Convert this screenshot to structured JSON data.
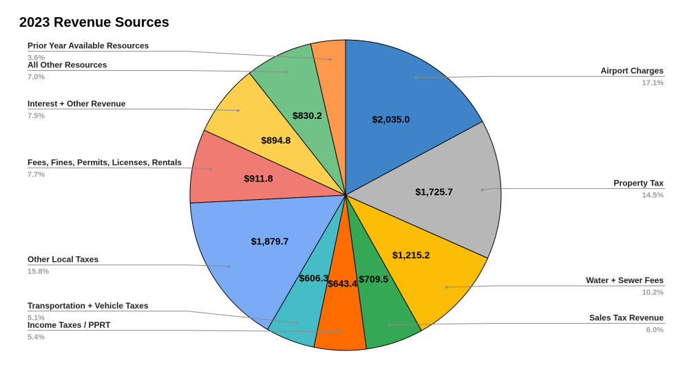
{
  "chart_data": {
    "type": "pie",
    "title": "2023 Revenue Sources",
    "start_angle_deg": 0,
    "direction": "clockwise",
    "slices": [
      {
        "name": "Airport Charges",
        "value": 2035.0,
        "value_label": "$2,035.0",
        "percent_label": "17.1%",
        "color": "#3f83c8",
        "side": "right"
      },
      {
        "name": "Property Tax",
        "value": 1725.7,
        "value_label": "$1,725.7",
        "percent_label": "14.5%",
        "color": "#b7b7b7",
        "side": "right"
      },
      {
        "name": "Water + Sewer Fees",
        "value": 1215.2,
        "value_label": "$1,215.2",
        "percent_label": "10.2%",
        "color": "#fbbc04",
        "side": "right"
      },
      {
        "name": "Sales Tax Revenue",
        "value": 709.5,
        "value_label": "$709.5",
        "percent_label": "6.0%",
        "color": "#34a853",
        "side": "right"
      },
      {
        "name": "Income Taxes / PPRT",
        "value": 643.4,
        "value_label": "$643.4",
        "percent_label": "5.4%",
        "color": "#ff6d01",
        "side": "left"
      },
      {
        "name": "Transportation + Vehicle Taxes",
        "value": 606.3,
        "value_label": "$606.3",
        "percent_label": "5.1%",
        "color": "#46bdc6",
        "side": "left"
      },
      {
        "name": "Other Local Taxes",
        "value": 1879.7,
        "value_label": "$1,879.7",
        "percent_label": "15.8%",
        "color": "#7baaf7",
        "side": "left"
      },
      {
        "name": "Fees, Fines, Permits, Licenses, Rentals",
        "value": 911.8,
        "value_label": "$911.8",
        "percent_label": "7.7%",
        "color": "#f07b72",
        "side": "left"
      },
      {
        "name": "Interest + Other Revenue",
        "value": 894.8,
        "value_label": "$894.8",
        "percent_label": "7.5%",
        "color": "#fcd04f",
        "side": "left"
      },
      {
        "name": "All Other Resources",
        "value": 830.2,
        "value_label": "$830.2",
        "percent_label": "7.0%",
        "color": "#71c287",
        "side": "left"
      },
      {
        "name": "Prior Year Available Resources",
        "value": 429.0,
        "value_label": "",
        "percent_label": "3.6%",
        "color": "#ff994d",
        "side": "left"
      }
    ]
  }
}
